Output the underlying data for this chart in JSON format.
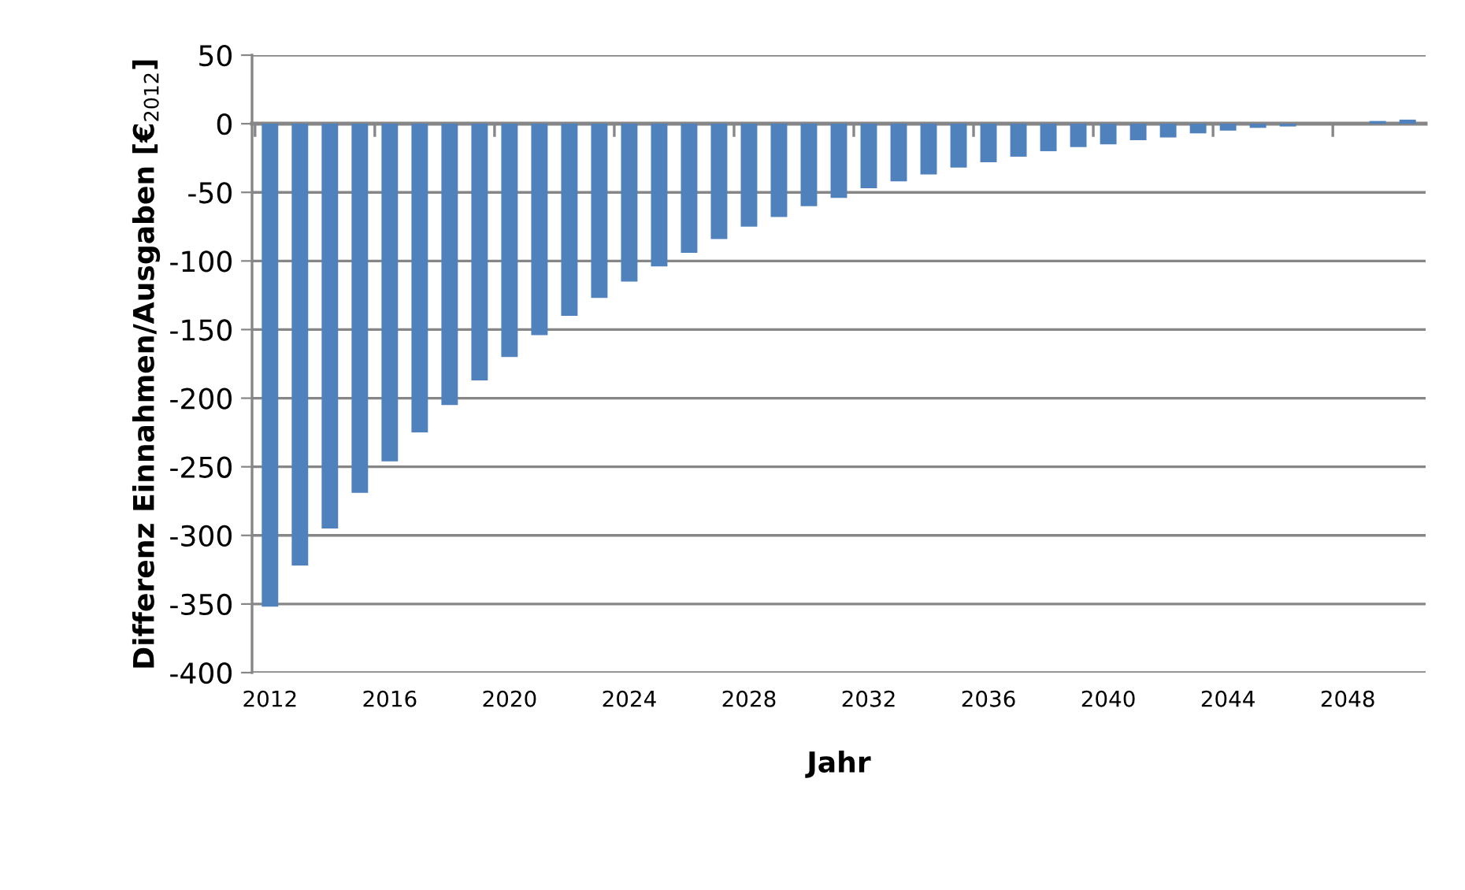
{
  "chart_data": {
    "type": "bar",
    "xlabel": "Jahr",
    "ylabel": "Differenz Einnahmen/Ausgaben [€$_{2012}$]",
    "categories": [
      "2012",
      null,
      null,
      null,
      "2016",
      null,
      null,
      null,
      "2020",
      null,
      null,
      null,
      "2024",
      null,
      null,
      null,
      "2028",
      null,
      null,
      null,
      "2032",
      null,
      null,
      null,
      "2036",
      null,
      null,
      null,
      "2040",
      null,
      null,
      null,
      "2044",
      null,
      null,
      null,
      "2048",
      null,
      null
    ],
    "values": [
      -352,
      -322,
      -295,
      -269,
      -246,
      -225,
      -205,
      -187,
      -170,
      -154,
      -140,
      -127,
      -115,
      -104,
      -94,
      -84,
      -75,
      -68,
      -60,
      -54,
      -47,
      -42,
      -37,
      -32,
      -28,
      -24,
      -20,
      -17,
      -15,
      -12,
      -10,
      -7,
      -5,
      -3,
      -2,
      0,
      0,
      2,
      3
    ],
    "color": "#4f81bd",
    "ylim": [
      -400,
      50
    ],
    "yticks": [
      -400,
      -350,
      -300,
      -250,
      -200,
      -150,
      -100,
      -50,
      0,
      50
    ],
    "grid": "y"
  }
}
